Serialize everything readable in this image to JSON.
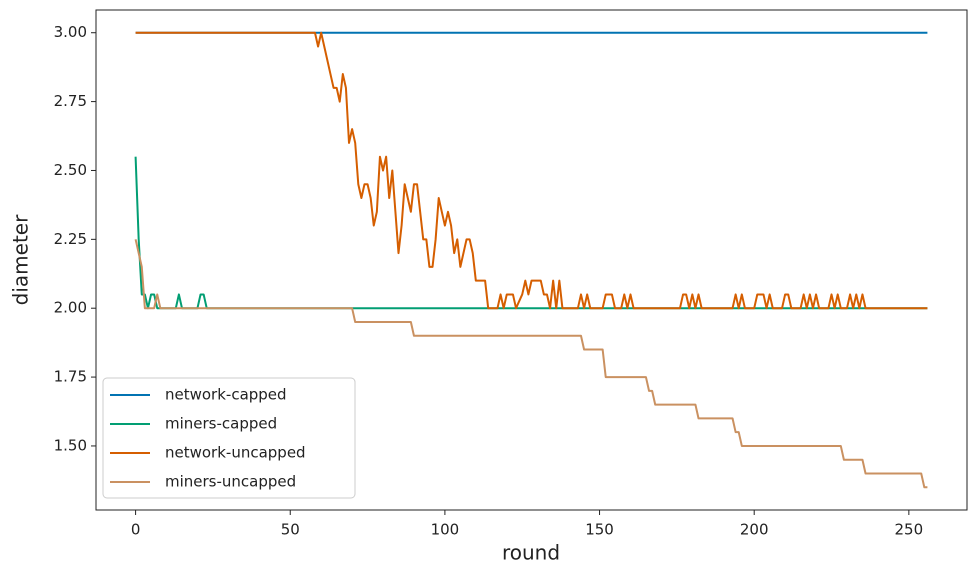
{
  "chart_data": {
    "type": "line",
    "xlabel": "round",
    "ylabel": "diameter",
    "xlim": [
      -12.8,
      268.8
    ],
    "ylim": [
      1.2675,
      3.0825
    ],
    "xticks": [
      0,
      50,
      100,
      150,
      200,
      250
    ],
    "yticks": [
      {
        "value": 1.5,
        "label": "1.50"
      },
      {
        "value": 1.75,
        "label": "1.75"
      },
      {
        "value": 2.0,
        "label": "2.00"
      },
      {
        "value": 2.25,
        "label": "2.25"
      },
      {
        "value": 2.5,
        "label": "2.50"
      },
      {
        "value": 2.75,
        "label": "2.75"
      },
      {
        "value": 3.0,
        "label": "3.00"
      }
    ],
    "legend": "lower left",
    "grid": false,
    "series": [
      {
        "name": "network-capped",
        "color": "#0173b2",
        "x": [
          0,
          256
        ],
        "values": [
          3.0,
          3.0
        ]
      },
      {
        "name": "miners-capped",
        "color": "#029e73",
        "x": [
          0,
          1,
          2,
          3,
          4,
          5,
          6,
          7,
          13,
          14,
          15,
          20,
          21,
          22,
          23,
          256
        ],
        "values": [
          2.55,
          2.25,
          2.05,
          2.05,
          2.0,
          2.05,
          2.05,
          2.0,
          2.0,
          2.05,
          2.0,
          2.0,
          2.05,
          2.05,
          2.0,
          2.0
        ]
      },
      {
        "name": "network-uncapped",
        "color": "#d55e00",
        "x": [
          0,
          58,
          59,
          60,
          61,
          62,
          63,
          64,
          65,
          66,
          67,
          68,
          69,
          70,
          71,
          72,
          73,
          74,
          75,
          76,
          77,
          78,
          79,
          80,
          81,
          82,
          83,
          84,
          85,
          86,
          87,
          88,
          89,
          90,
          91,
          92,
          93,
          94,
          95,
          96,
          97,
          98,
          99,
          100,
          101,
          102,
          103,
          104,
          105,
          106,
          107,
          108,
          109,
          110,
          111,
          112,
          113,
          114,
          117,
          118,
          119,
          120,
          122,
          123,
          125,
          126,
          127,
          128,
          131,
          132,
          133,
          134,
          135,
          136,
          137,
          138,
          143,
          144,
          145,
          146,
          147,
          151,
          152,
          154,
          155,
          157,
          158,
          159,
          160,
          161,
          176,
          177,
          178,
          179,
          180,
          181,
          182,
          183,
          193,
          194,
          195,
          196,
          197,
          200,
          201,
          203,
          204,
          205,
          206,
          209,
          210,
          211,
          212,
          215,
          216,
          217,
          218,
          219,
          220,
          221,
          224,
          225,
          226,
          227,
          228,
          230,
          231,
          232,
          233,
          234,
          235,
          236,
          256
        ],
        "values": [
          3.0,
          3.0,
          2.95,
          3.0,
          2.95,
          2.9,
          2.85,
          2.8,
          2.8,
          2.75,
          2.85,
          2.8,
          2.6,
          2.65,
          2.6,
          2.45,
          2.4,
          2.45,
          2.45,
          2.4,
          2.3,
          2.35,
          2.55,
          2.5,
          2.55,
          2.4,
          2.5,
          2.35,
          2.2,
          2.3,
          2.45,
          2.4,
          2.35,
          2.45,
          2.45,
          2.35,
          2.25,
          2.25,
          2.15,
          2.15,
          2.25,
          2.4,
          2.35,
          2.3,
          2.35,
          2.3,
          2.2,
          2.25,
          2.15,
          2.2,
          2.25,
          2.25,
          2.2,
          2.1,
          2.1,
          2.1,
          2.1,
          2.0,
          2.0,
          2.05,
          2.0,
          2.05,
          2.05,
          2.0,
          2.05,
          2.1,
          2.05,
          2.1,
          2.1,
          2.05,
          2.05,
          2.0,
          2.1,
          2.0,
          2.1,
          2.0,
          2.0,
          2.05,
          2.0,
          2.05,
          2.0,
          2.0,
          2.05,
          2.05,
          2.0,
          2.0,
          2.05,
          2.0,
          2.05,
          2.0,
          2.0,
          2.05,
          2.05,
          2.0,
          2.05,
          2.0,
          2.05,
          2.0,
          2.0,
          2.05,
          2.0,
          2.05,
          2.0,
          2.0,
          2.05,
          2.05,
          2.0,
          2.05,
          2.0,
          2.0,
          2.05,
          2.05,
          2.0,
          2.0,
          2.05,
          2.0,
          2.05,
          2.0,
          2.05,
          2.0,
          2.0,
          2.05,
          2.0,
          2.05,
          2.0,
          2.0,
          2.05,
          2.0,
          2.05,
          2.0,
          2.05,
          2.0,
          2.0
        ]
      },
      {
        "name": "miners-uncapped",
        "color": "#ca9161",
        "x": [
          0,
          2,
          3,
          6,
          7,
          8,
          70,
          71,
          89,
          90,
          144,
          145,
          151,
          152,
          165,
          166,
          167,
          168,
          181,
          182,
          193,
          194,
          195,
          196,
          228,
          229,
          235,
          236,
          254,
          255,
          256
        ],
        "values": [
          2.25,
          2.15,
          2.0,
          2.0,
          2.05,
          2.0,
          2.0,
          1.95,
          1.95,
          1.9,
          1.9,
          1.85,
          1.85,
          1.75,
          1.75,
          1.7,
          1.7,
          1.65,
          1.65,
          1.6,
          1.6,
          1.55,
          1.55,
          1.5,
          1.5,
          1.45,
          1.45,
          1.4,
          1.4,
          1.35,
          1.35
        ]
      }
    ]
  }
}
